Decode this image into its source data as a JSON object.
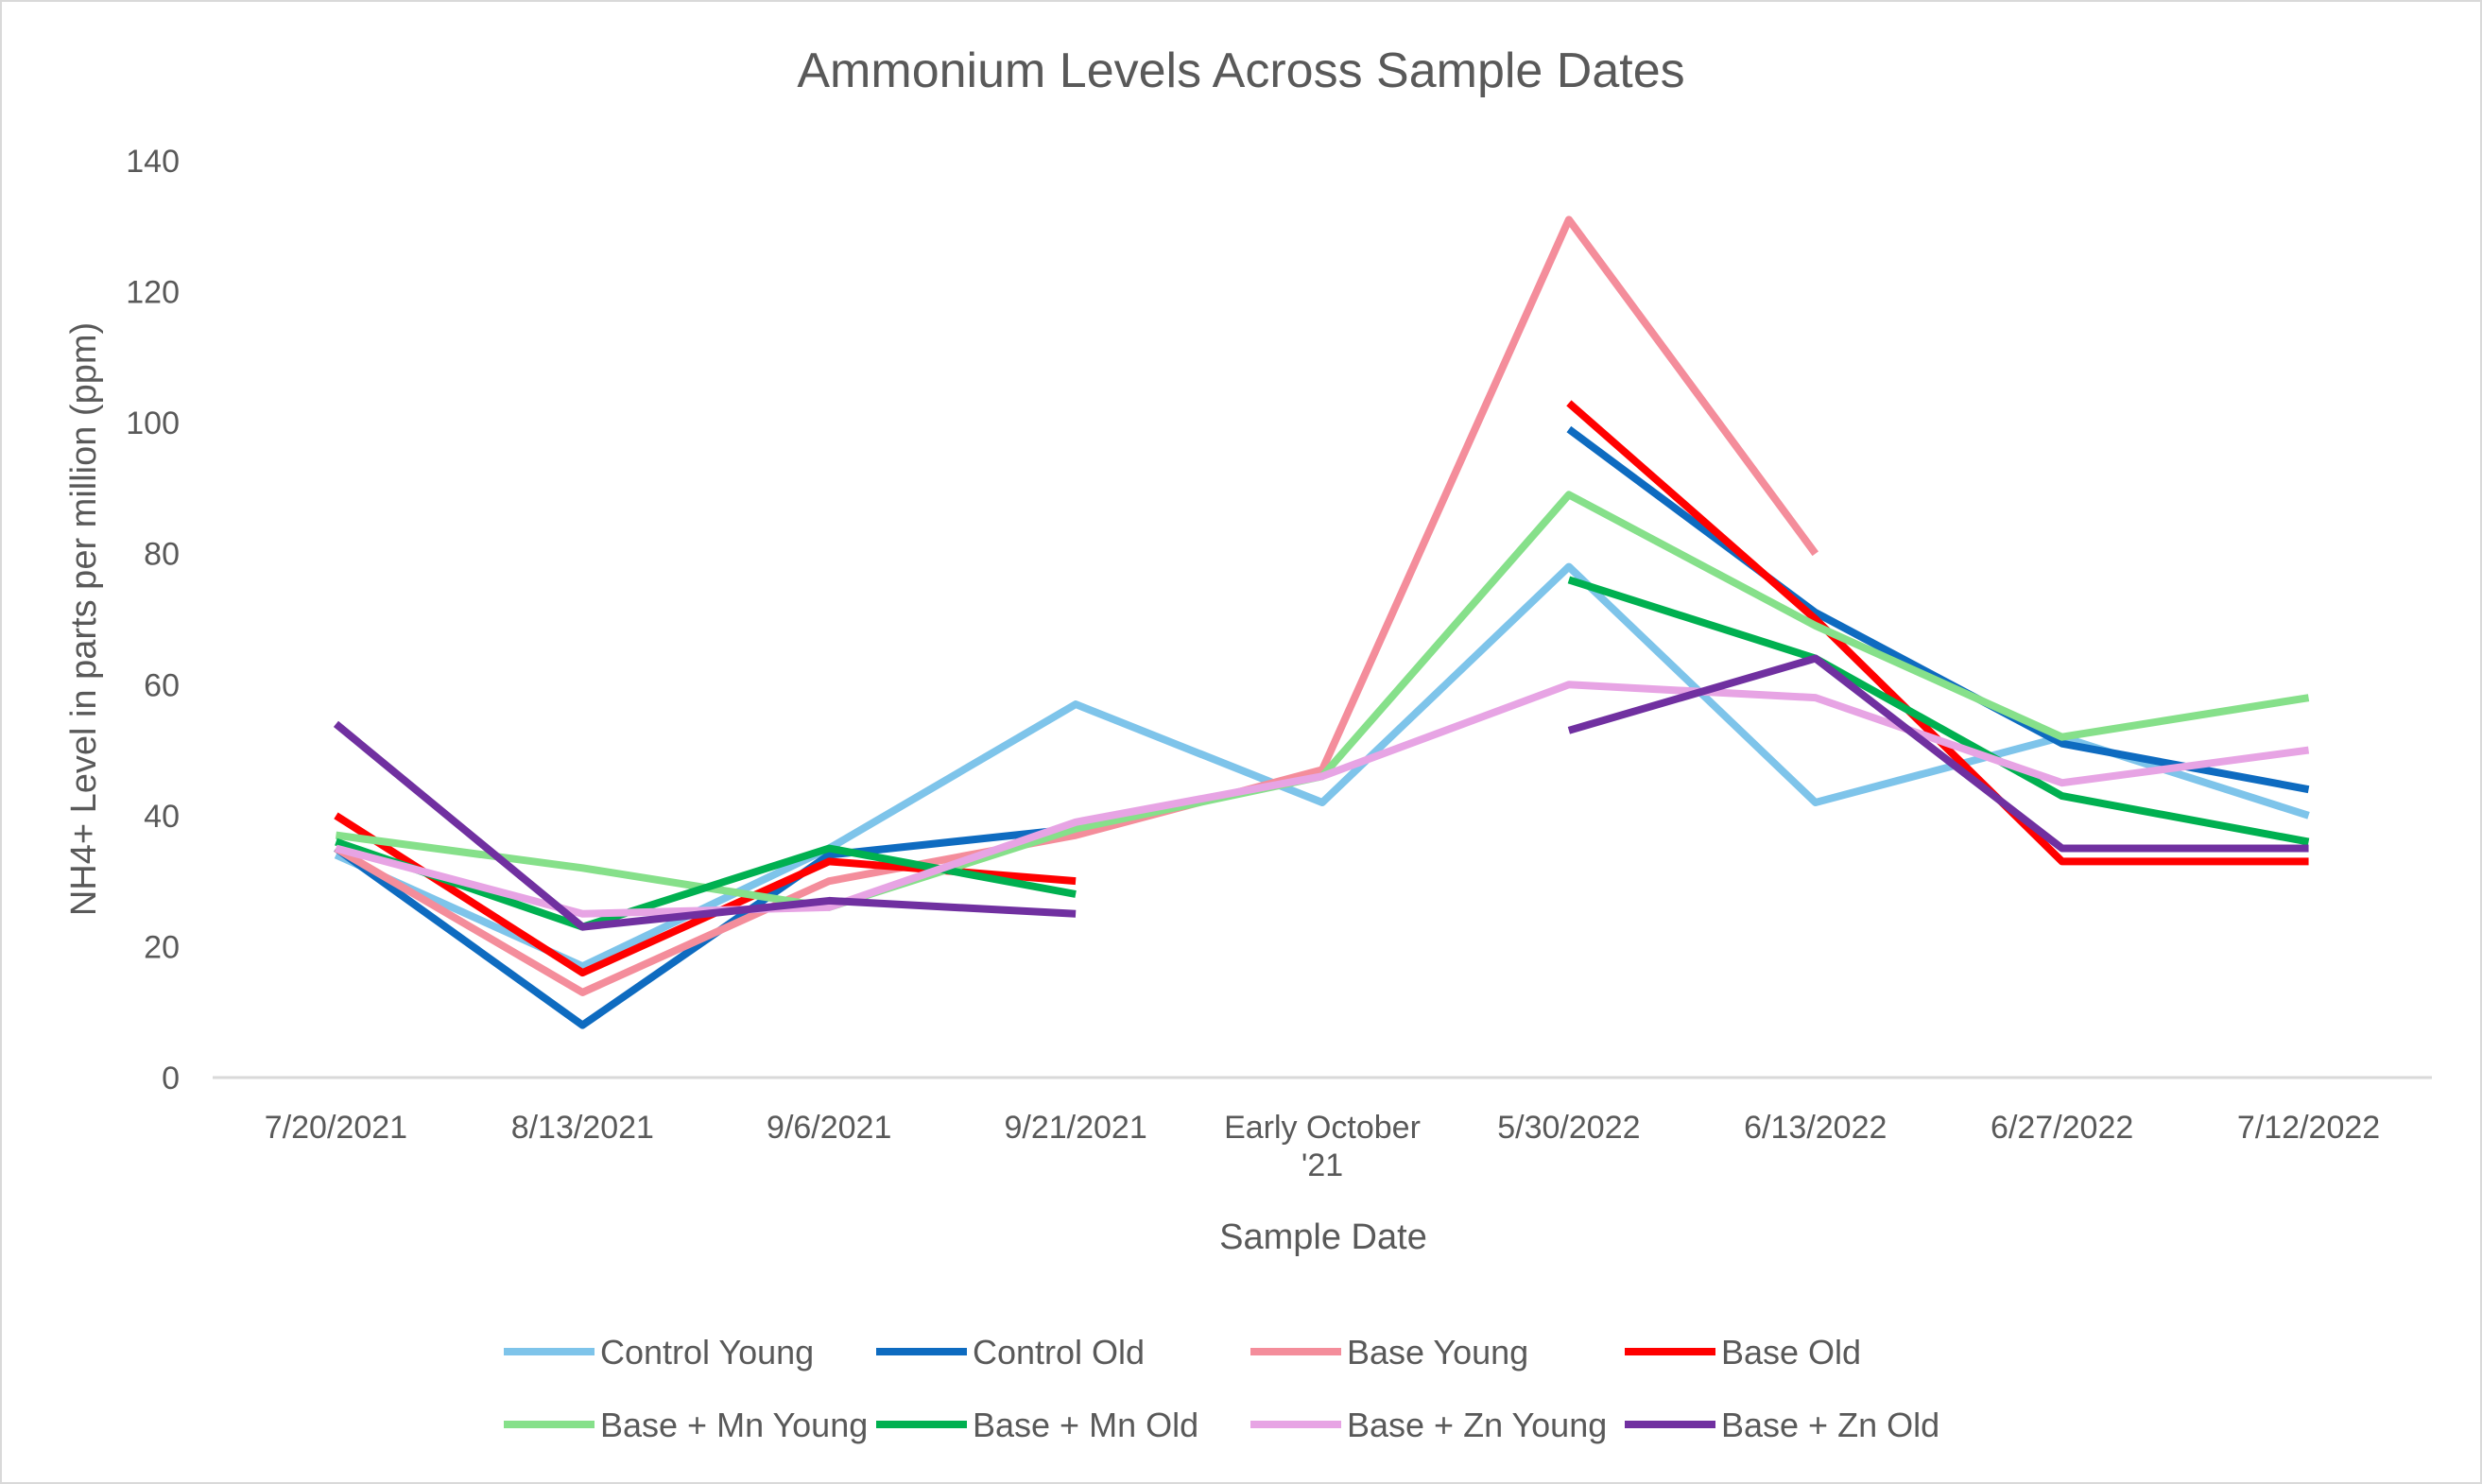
{
  "chart_data": {
    "type": "line",
    "title": "Ammonium Levels Across Sample Dates",
    "xlabel": "Sample Date",
    "ylabel": "NH4+ Level in parts per million (ppm)",
    "ylim": [
      0,
      140
    ],
    "yticks": [
      "0",
      "20",
      "40",
      "60",
      "80",
      "100",
      "120",
      "140"
    ],
    "categories": [
      "7/20/2021",
      "8/13/2021",
      "9/6/2021",
      "9/21/2021",
      "Early October '21",
      "5/30/2022",
      "6/13/2022",
      "6/27/2022",
      "7/12/2022"
    ],
    "category_lines": [
      [
        "7/20/2021"
      ],
      [
        "8/13/2021"
      ],
      [
        "9/6/2021"
      ],
      [
        "9/21/2021"
      ],
      [
        "Early October",
        "'21"
      ],
      [
        "5/30/2022"
      ],
      [
        "6/13/2022"
      ],
      [
        "6/27/2022"
      ],
      [
        "7/12/2022"
      ]
    ],
    "grid": false,
    "legend_position": "bottom",
    "series": [
      {
        "name": "Control Young",
        "color": "#7ec4ea",
        "values": [
          34,
          17,
          35,
          57,
          42,
          78,
          42,
          52,
          40
        ]
      },
      {
        "name": "Control Old",
        "color": "#0e6bc0",
        "values": [
          35,
          8,
          34,
          38,
          null,
          99,
          71,
          51,
          44
        ]
      },
      {
        "name": "Base Young",
        "color": "#f48d9b",
        "values": [
          35,
          13,
          30,
          37,
          47,
          131,
          80,
          null,
          null
        ]
      },
      {
        "name": "Base Old",
        "color": "#ff0000",
        "values": [
          40,
          16,
          33,
          30,
          null,
          103,
          70,
          33,
          33
        ]
      },
      {
        "name": "Base + Mn Young",
        "color": "#86e08a",
        "values": [
          37,
          32,
          26,
          38,
          46,
          89,
          69,
          52,
          58
        ]
      },
      {
        "name": "Base + Mn Old",
        "color": "#00b050",
        "values": [
          36,
          23,
          35,
          28,
          null,
          76,
          64,
          43,
          36
        ]
      },
      {
        "name": "Base + Zn Young",
        "color": "#e7a4e4",
        "values": [
          35,
          25,
          26,
          39,
          46,
          60,
          58,
          45,
          50
        ]
      },
      {
        "name": "Base + Zn Old",
        "color": "#7030a0",
        "values": [
          54,
          23,
          27,
          25,
          null,
          53,
          64,
          35,
          35
        ]
      }
    ]
  }
}
